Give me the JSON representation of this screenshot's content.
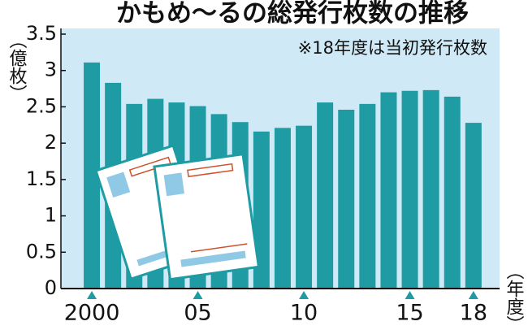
{
  "chart_data": {
    "type": "bar",
    "title": "かもめ～るの総発行枚数の推移",
    "note": "※18年度は当初発行枚数",
    "y_label": "（億枚）",
    "x_label": "（年度）",
    "categories": [
      "2000",
      null,
      null,
      null,
      null,
      "05",
      null,
      null,
      null,
      null,
      "10",
      null,
      null,
      null,
      null,
      "15",
      null,
      null,
      "18"
    ],
    "values": [
      3.11,
      2.83,
      2.54,
      2.61,
      2.56,
      2.51,
      2.4,
      2.29,
      2.16,
      2.21,
      2.24,
      2.56,
      2.46,
      2.54,
      2.7,
      2.72,
      2.73,
      2.64,
      2.28
    ],
    "color": "#1f9ba3",
    "ylim": [
      0,
      3.5
    ],
    "yticks": [
      0,
      0.5,
      1,
      1.5,
      2,
      2.5,
      3,
      3.5
    ],
    "grid": false
  }
}
